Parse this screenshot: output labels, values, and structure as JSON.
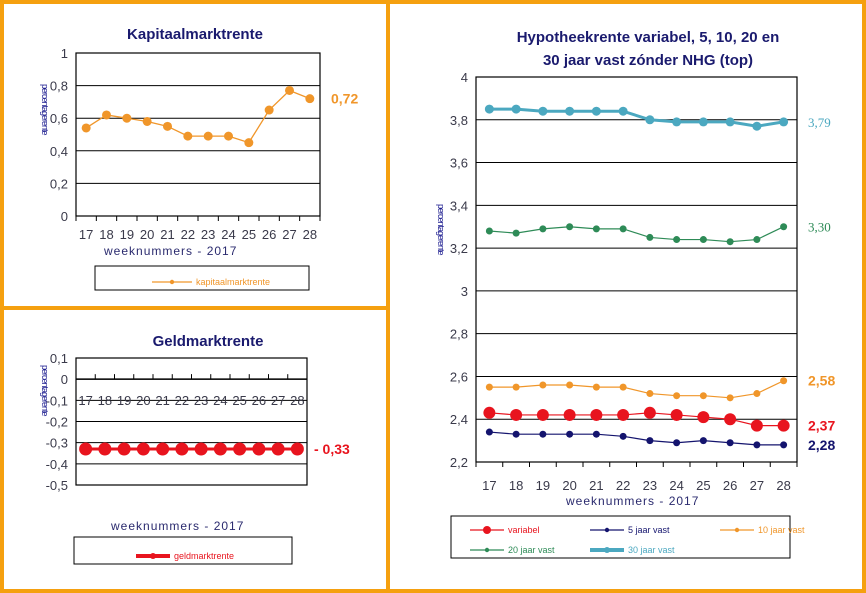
{
  "colors": {
    "border": "#F5A00F",
    "title": "#1a1a6e",
    "kapitaal": "#F0962A",
    "geld": "#E8141E",
    "variabel": "#E8141E",
    "vast5": "#14146E",
    "vast10": "#F0962A",
    "vast20": "#2E8B57",
    "vast30": "#4BA8C0"
  },
  "chart_data": [
    {
      "type": "line",
      "title": "Kapitaalmarktrente",
      "xlabel": "weeknummers - 2017",
      "ylabel": "percentage rente",
      "categories": [
        "17",
        "18",
        "19",
        "20",
        "21",
        "22",
        "23",
        "24",
        "25",
        "26",
        "27",
        "28"
      ],
      "ylim": [
        0,
        1
      ],
      "yticks": [
        "0",
        "0,2",
        "0,4",
        "0,6",
        "0,8",
        "1"
      ],
      "ytick_values": [
        0,
        0.2,
        0.4,
        0.6,
        0.8,
        1
      ],
      "grid": true,
      "legend_position": "bottom",
      "series": [
        {
          "name": "kapitaalmarktrente",
          "color": "#F0962A",
          "values": [
            0.54,
            0.62,
            0.6,
            0.58,
            0.55,
            0.49,
            0.49,
            0.49,
            0.45,
            0.65,
            0.77,
            0.72
          ],
          "end_label": "0,72"
        }
      ]
    },
    {
      "type": "line",
      "title": "Geldmarktrente",
      "xlabel": "weeknummers - 2017",
      "ylabel": "percentage rente",
      "categories": [
        "17",
        "18",
        "19",
        "20",
        "21",
        "22",
        "23",
        "24",
        "25",
        "26",
        "27",
        "28"
      ],
      "ylim": [
        -0.5,
        0.1
      ],
      "yticks": [
        "0,1",
        "0",
        "-0,1",
        "-0,2",
        "-0,3",
        "-0,4",
        "-0,5"
      ],
      "ytick_values": [
        0.1,
        0,
        -0.1,
        -0.2,
        -0.3,
        -0.4,
        -0.5
      ],
      "grid": true,
      "legend_position": "bottom",
      "series": [
        {
          "name": "geldmarktrente",
          "color": "#E8141E",
          "values": [
            -0.33,
            -0.33,
            -0.33,
            -0.33,
            -0.33,
            -0.33,
            -0.33,
            -0.33,
            -0.33,
            -0.33,
            -0.33,
            -0.33
          ],
          "end_label": "- 0,33"
        }
      ]
    },
    {
      "type": "line",
      "title": "Hypotheekrente variabel, 5, 10, 20 en 30 jaar vast zónder NHG (top)",
      "title_lines": [
        "Hypotheekrente variabel, 5, 10, 20 en",
        "30 jaar vast zónder NHG (top)"
      ],
      "xlabel": "weeknummers - 2017",
      "ylabel": "percentage rente",
      "categories": [
        "17",
        "18",
        "19",
        "20",
        "21",
        "22",
        "23",
        "24",
        "25",
        "26",
        "27",
        "28"
      ],
      "ylim": [
        2.2,
        4
      ],
      "yticks": [
        "2,2",
        "2,4",
        "2,6",
        "2,8",
        "3",
        "3,2",
        "3,4",
        "3,6",
        "3,8",
        "4"
      ],
      "ytick_values": [
        2.2,
        2.4,
        2.6,
        2.8,
        3.0,
        3.2,
        3.4,
        3.6,
        3.8,
        4.0
      ],
      "grid": true,
      "legend_position": "bottom",
      "series": [
        {
          "name": "variabel",
          "color": "#E8141E",
          "values": [
            2.43,
            2.42,
            2.42,
            2.42,
            2.42,
            2.42,
            2.43,
            2.42,
            2.41,
            2.4,
            2.37,
            2.37
          ],
          "end_label": "2,37"
        },
        {
          "name": "5 jaar vast",
          "color": "#14146E",
          "values": [
            2.34,
            2.33,
            2.33,
            2.33,
            2.33,
            2.32,
            2.3,
            2.29,
            2.3,
            2.29,
            2.28,
            2.28
          ],
          "end_label": "2,28"
        },
        {
          "name": "10 jaar vast",
          "color": "#F0962A",
          "values": [
            2.55,
            2.55,
            2.56,
            2.56,
            2.55,
            2.55,
            2.52,
            2.51,
            2.51,
            2.5,
            2.52,
            2.58
          ],
          "end_label": "2,58"
        },
        {
          "name": "20 jaar vast",
          "color": "#2E8B57",
          "values": [
            3.28,
            3.27,
            3.29,
            3.3,
            3.29,
            3.29,
            3.25,
            3.24,
            3.24,
            3.23,
            3.24,
            3.3
          ],
          "end_label": "3,30"
        },
        {
          "name": "30 jaar vast",
          "color": "#4BA8C0",
          "values": [
            3.85,
            3.85,
            3.84,
            3.84,
            3.84,
            3.84,
            3.8,
            3.79,
            3.79,
            3.79,
            3.77,
            3.79
          ],
          "end_label": "3,79"
        }
      ]
    }
  ]
}
